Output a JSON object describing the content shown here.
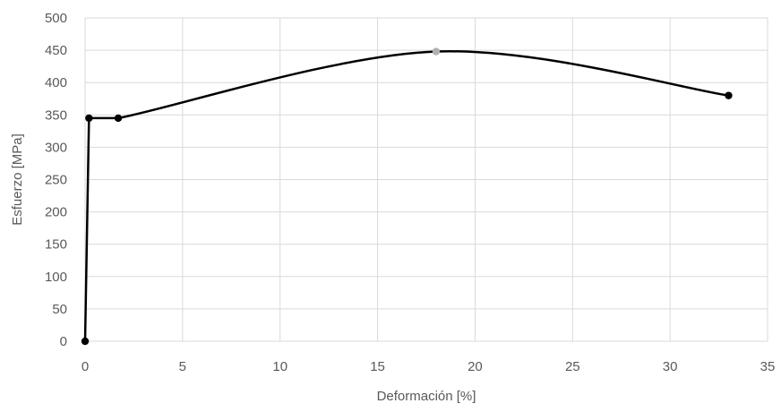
{
  "chart_data": {
    "type": "line",
    "title": "",
    "xlabel": "Deformación [%]",
    "ylabel": "Esfuerzo [MPa]",
    "xlim": [
      0,
      35
    ],
    "ylim": [
      0,
      500
    ],
    "xticks": [
      0,
      5,
      10,
      15,
      20,
      25,
      30,
      35
    ],
    "yticks": [
      0,
      50,
      100,
      150,
      200,
      250,
      300,
      350,
      400,
      450,
      500
    ],
    "grid": true,
    "legend": "none",
    "series": [
      {
        "points": [
          [
            0,
            0
          ],
          [
            0.2,
            345
          ],
          [
            1.7,
            345
          ],
          [
            18,
            448
          ],
          [
            33,
            380
          ]
        ]
      }
    ],
    "line_color": "#000000",
    "grid_color": "#d9d9d9"
  }
}
